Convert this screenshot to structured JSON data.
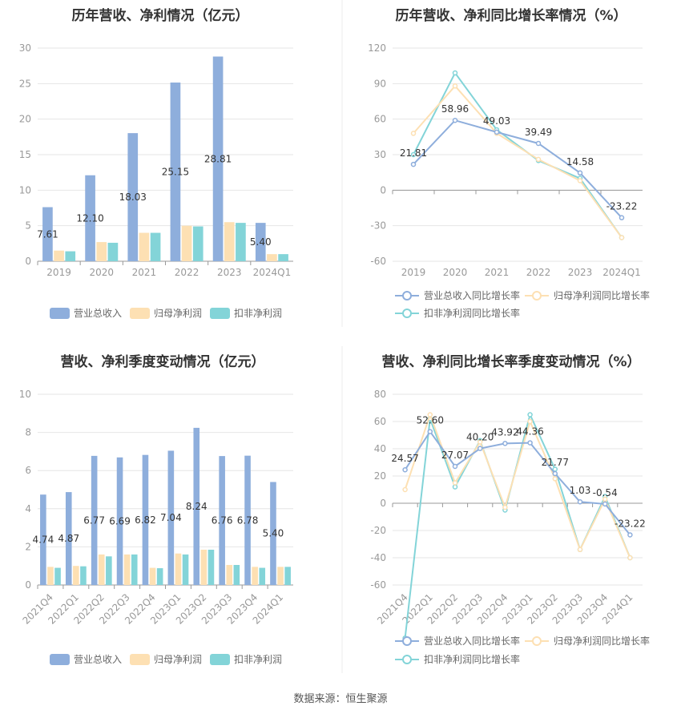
{
  "colors": {
    "revenue": "#8eaedc",
    "parent_profit": "#fde0b3",
    "deducted_profit": "#83d4d8",
    "grid": "#e6e6e6",
    "axis": "#999999"
  },
  "footer": {
    "source": "数据来源：恒生聚源"
  },
  "chart_data": [
    {
      "type": "bar",
      "title": "历年营收、净利情况（亿元）",
      "categories": [
        "2019",
        "2020",
        "2021",
        "2022",
        "2023",
        "2024Q1"
      ],
      "ylim": [
        0,
        30
      ],
      "yticks": [
        0,
        5,
        10,
        15,
        20,
        25,
        30
      ],
      "legend_position": "bottom",
      "grid": true,
      "series": [
        {
          "name": "营业总收入",
          "values": [
            7.61,
            12.1,
            18.03,
            25.15,
            28.81,
            5.4
          ],
          "labels": [
            "7.61",
            "12.10",
            "18.03",
            "25.15",
            "28.81",
            "5.40"
          ]
        },
        {
          "name": "归母净利润",
          "values": [
            1.5,
            2.7,
            4.0,
            5.0,
            5.5,
            1.0
          ]
        },
        {
          "name": "扣非净利润",
          "values": [
            1.4,
            2.6,
            4.0,
            4.9,
            5.4,
            1.0
          ]
        }
      ]
    },
    {
      "type": "line",
      "title": "历年营收、净利同比增长率情况（%）",
      "categories": [
        "2019",
        "2020",
        "2021",
        "2022",
        "2023",
        "2024Q1"
      ],
      "ylim": [
        -60,
        120
      ],
      "yticks": [
        -60,
        -30,
        0,
        30,
        60,
        90,
        120
      ],
      "legend_position": "bottom",
      "grid": true,
      "series": [
        {
          "name": "营业总收入同比增长率",
          "values": [
            21.81,
            58.96,
            49.03,
            39.49,
            14.58,
            -23.22
          ],
          "labels": [
            "21.81",
            "58.96",
            "49.03",
            "39.49",
            "14.58",
            "-23.22"
          ]
        },
        {
          "name": "归母净利润同比增长率",
          "values": [
            48,
            88,
            48,
            26,
            8,
            -40
          ]
        },
        {
          "name": "扣非净利润同比增长率",
          "values": [
            30,
            99,
            51,
            25,
            10,
            -40
          ]
        }
      ]
    },
    {
      "type": "bar",
      "title": "营收、净利季度变动情况（亿元）",
      "categories": [
        "2021Q4",
        "2022Q1",
        "2022Q2",
        "2022Q3",
        "2022Q4",
        "2023Q1",
        "2023Q2",
        "2023Q3",
        "2023Q4",
        "2024Q1"
      ],
      "ylim": [
        0,
        10
      ],
      "yticks": [
        0,
        2,
        4,
        6,
        8,
        10
      ],
      "legend_position": "bottom",
      "grid": true,
      "series": [
        {
          "name": "营业总收入",
          "values": [
            4.74,
            4.87,
            6.77,
            6.69,
            6.82,
            7.04,
            8.24,
            6.76,
            6.78,
            5.4
          ],
          "labels": [
            "4.74",
            "4.87",
            "6.77",
            "6.69",
            "6.82",
            "7.04",
            "8.24",
            "6.76",
            "6.78",
            "5.40"
          ]
        },
        {
          "name": "归母净利润",
          "values": [
            0.95,
            1.0,
            1.6,
            1.6,
            0.9,
            1.65,
            1.85,
            1.05,
            0.95,
            0.95
          ]
        },
        {
          "name": "扣非净利润",
          "values": [
            0.9,
            0.98,
            1.5,
            1.6,
            0.88,
            1.6,
            1.85,
            1.05,
            0.9,
            0.95
          ]
        }
      ]
    },
    {
      "type": "line",
      "title": "营收、净利同比增长率季度变动情况（%）",
      "categories": [
        "2021Q4",
        "2022Q1",
        "2022Q2",
        "2022Q3",
        "2022Q4",
        "2023Q1",
        "2023Q2",
        "2023Q3",
        "2023Q4",
        "2024Q1"
      ],
      "ylim": [
        -60,
        80
      ],
      "yticks": [
        -60,
        -40,
        -20,
        0,
        20,
        40,
        60,
        80
      ],
      "legend_position": "bottom",
      "grid": true,
      "series": [
        {
          "name": "营业总收入同比增长率",
          "values": [
            24.57,
            52.6,
            27.07,
            40.2,
            43.92,
            44.36,
            21.77,
            1.03,
            -0.54,
            -23.22
          ],
          "labels": [
            "24.57",
            "52.60",
            "27.07",
            "40.20",
            "43.92",
            "44.36",
            "21.77",
            "1.03",
            "-0.54",
            "-23.22"
          ]
        },
        {
          "name": "归母净利润同比增长率",
          "values": [
            10,
            65,
            15,
            45,
            -3,
            60,
            18,
            -34,
            3,
            -40
          ]
        },
        {
          "name": "扣非净利润同比增长率",
          "values": [
            -99,
            62,
            12,
            46,
            -5,
            65,
            25,
            -34,
            5,
            -40
          ]
        }
      ]
    }
  ]
}
